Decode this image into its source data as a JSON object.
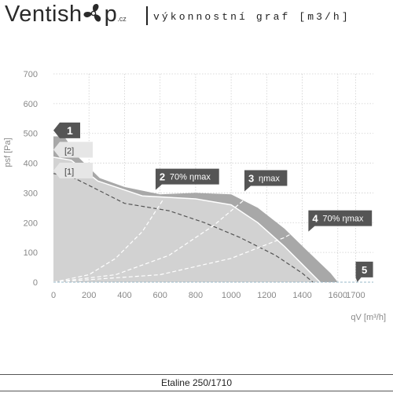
{
  "header": {
    "brand": "Ventish",
    "brand_end": "p",
    "brand_tld": ".cz",
    "subtitle": "výkonnostní graf [m3/h]"
  },
  "footer": {
    "model": "Etaline 250/1710"
  },
  "colors": {
    "dark_area": "#a8a8a8",
    "light_area": "#d2d2d2",
    "label_dark": "#555555",
    "label_light": "#e6e6e6",
    "axis_text": "#888888",
    "grid": "#cfcfcf"
  },
  "chart_data": {
    "type": "area",
    "xlabel": "qV [m³/h]",
    "ylabel": "psf [Pa]",
    "xlim": [
      0,
      1800
    ],
    "ylim": [
      0,
      700
    ],
    "xticks": [
      0,
      200,
      400,
      600,
      800,
      1000,
      1200,
      1400,
      1600,
      1700
    ],
    "yticks": [
      0,
      100,
      200,
      300,
      400,
      500,
      600,
      700
    ],
    "grid": true,
    "series": [
      {
        "name": "1",
        "style": "envelope",
        "points": [
          [
            0,
            490
          ],
          [
            60,
            490
          ],
          [
            140,
            420
          ],
          [
            260,
            350
          ],
          [
            400,
            320
          ],
          [
            600,
            295
          ],
          [
            800,
            300
          ],
          [
            1000,
            295
          ],
          [
            1150,
            250
          ],
          [
            1300,
            180
          ],
          [
            1420,
            110
          ],
          [
            1560,
            30
          ],
          [
            1600,
            0
          ]
        ]
      },
      {
        "name": "[2]",
        "style": "solid",
        "points": [
          [
            0,
            420
          ],
          [
            100,
            410
          ],
          [
            250,
            340
          ],
          [
            500,
            290
          ],
          [
            800,
            280
          ],
          [
            1000,
            260
          ],
          [
            1150,
            200
          ],
          [
            1300,
            120
          ],
          [
            1400,
            60
          ],
          [
            1500,
            0
          ]
        ]
      },
      {
        "name": "[1]",
        "style": "dashed",
        "points": [
          [
            0,
            365
          ],
          [
            100,
            355
          ],
          [
            250,
            310
          ],
          [
            400,
            265
          ],
          [
            650,
            240
          ],
          [
            850,
            200
          ],
          [
            1050,
            150
          ],
          [
            1250,
            90
          ],
          [
            1400,
            30
          ],
          [
            1460,
            0
          ]
        ]
      },
      {
        "name": "2 70% ηmax",
        "style": "efficiency",
        "points": [
          [
            0,
            0
          ],
          [
            200,
            25
          ],
          [
            350,
            80
          ],
          [
            500,
            170
          ],
          [
            620,
            280
          ]
        ]
      },
      {
        "name": "3 ηmax",
        "style": "efficiency",
        "points": [
          [
            0,
            0
          ],
          [
            350,
            25
          ],
          [
            650,
            90
          ],
          [
            900,
            190
          ],
          [
            1120,
            300
          ]
        ]
      },
      {
        "name": "4 70% ηmax",
        "style": "efficiency",
        "points": [
          [
            0,
            0
          ],
          [
            600,
            25
          ],
          [
            1000,
            80
          ],
          [
            1300,
            150
          ],
          [
            1480,
            210
          ]
        ]
      }
    ],
    "annotations": [
      {
        "label": "1",
        "x": 0,
        "y": 510,
        "style": "dark"
      },
      {
        "label": "[2]",
        "x": 0,
        "y": 445,
        "style": "light"
      },
      {
        "label": "[1]",
        "x": 0,
        "y": 375,
        "style": "light"
      },
      {
        "label": "2",
        "extra": "70% ηmax",
        "x": 610,
        "y": 355,
        "style": "dark"
      },
      {
        "label": "3",
        "extra": "ηmax",
        "x": 1110,
        "y": 350,
        "style": "dark"
      },
      {
        "label": "4",
        "extra": "70% ηmax",
        "x": 1470,
        "y": 215,
        "style": "dark"
      },
      {
        "label": "5",
        "x": 1745,
        "y": 40,
        "style": "dark"
      }
    ]
  }
}
